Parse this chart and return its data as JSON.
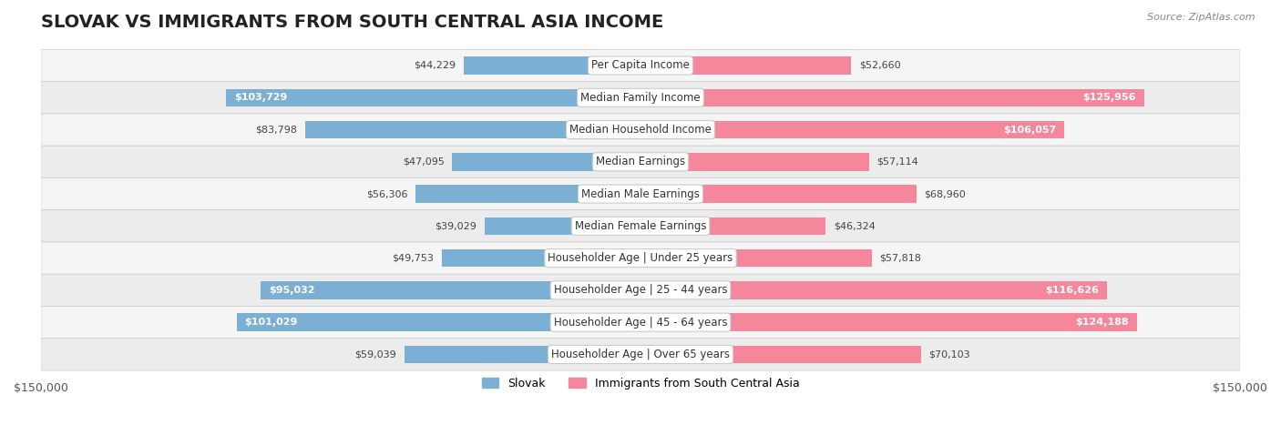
{
  "title": "SLOVAK VS IMMIGRANTS FROM SOUTH CENTRAL ASIA INCOME",
  "source": "Source: ZipAtlas.com",
  "categories": [
    "Per Capita Income",
    "Median Family Income",
    "Median Household Income",
    "Median Earnings",
    "Median Male Earnings",
    "Median Female Earnings",
    "Householder Age | Under 25 years",
    "Householder Age | 25 - 44 years",
    "Householder Age | 45 - 64 years",
    "Householder Age | Over 65 years"
  ],
  "slovak_values": [
    44229,
    103729,
    83798,
    47095,
    56306,
    39029,
    49753,
    95032,
    101029,
    59039
  ],
  "immigrant_values": [
    52660,
    125956,
    106057,
    57114,
    68960,
    46324,
    57818,
    116626,
    124188,
    70103
  ],
  "slovak_labels": [
    "$44,229",
    "$103,729",
    "$83,798",
    "$47,095",
    "$56,306",
    "$39,029",
    "$49,753",
    "$95,032",
    "$101,029",
    "$59,039"
  ],
  "immigrant_labels": [
    "$52,660",
    "$125,956",
    "$106,057",
    "$57,114",
    "$68,960",
    "$46,324",
    "$57,818",
    "$116,626",
    "$124,188",
    "$70,103"
  ],
  "slovak_color": "#7bafd4",
  "immigrant_color": "#f4879c",
  "slovak_label_dark": [
    false,
    true,
    false,
    false,
    false,
    false,
    false,
    true,
    true,
    false
  ],
  "immigrant_label_dark": [
    false,
    true,
    true,
    false,
    false,
    false,
    false,
    true,
    true,
    false
  ],
  "max_value": 150000,
  "legend_slovak": "Slovak",
  "legend_immigrant": "Immigrants from South Central Asia",
  "row_bg_color": "#f0f0f0",
  "bar_height": 0.55,
  "title_fontsize": 14,
  "label_fontsize": 9,
  "axis_label": "$150,000"
}
